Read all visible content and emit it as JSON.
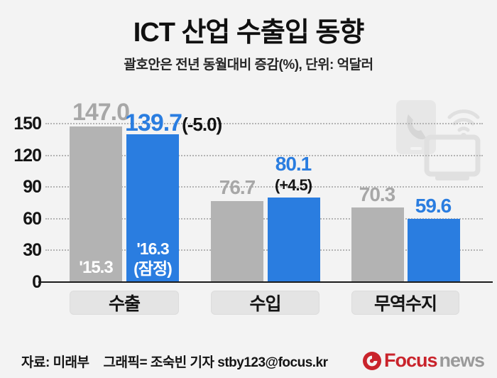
{
  "title": "ICT 산업 수출입 동향",
  "subtitle": "괄호안은 전년 동월대비 증감(%), 단위: 억달러",
  "chart_data": {
    "type": "bar",
    "categories": [
      "수출",
      "수입",
      "무역수지"
    ],
    "series": [
      {
        "name": "'15.3",
        "values": [
          147.0,
          76.7,
          70.3
        ]
      },
      {
        "name": "'16.3(잠정)",
        "values": [
          139.7,
          80.1,
          59.6
        ]
      }
    ],
    "value_labels": {
      "prev": [
        "147.0",
        "76.7",
        "70.3"
      ],
      "curr": [
        "139.7",
        "80.1",
        "59.6"
      ],
      "change": [
        "(-5.0)",
        "(+4.5)",
        ""
      ]
    },
    "bar_tags": {
      "prev": "'15.3",
      "curr_line1": "'16.3",
      "curr_line2": "(잠정)"
    },
    "y_ticks": [
      "150",
      "120",
      "90",
      "60",
      "30",
      "0"
    ],
    "ylim": [
      0,
      150
    ],
    "grid": "horizontal-dotted",
    "legend_position": "inside-bars",
    "colors": {
      "prev_bar": "#b3b3b3",
      "curr_bar": "#2a7de0",
      "prev_label": "#a7a7a7",
      "curr_label": "#2a7de0",
      "background": "#f3f3f3"
    }
  },
  "footer": {
    "source": "자료: 미래부",
    "credit": "그래픽= 조숙빈 기자 stby123@focus.kr",
    "logo_focus": "Focus",
    "logo_news": "news",
    "logo_red": "#c9232b",
    "logo_gray": "#9a9a9a"
  }
}
